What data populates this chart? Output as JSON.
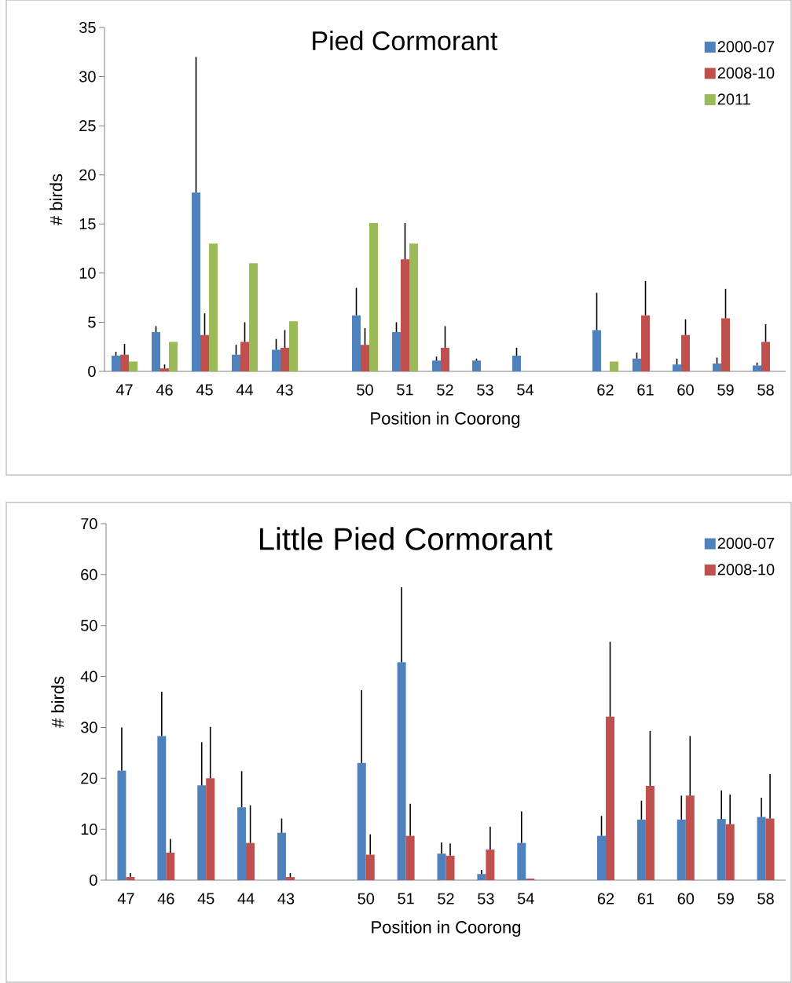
{
  "chart_data": [
    {
      "type": "bar",
      "title": "Pied Cormorant",
      "xlabel": "Position in Coorong",
      "ylabel": "# birds",
      "categories": [
        "47",
        "46",
        "45",
        "44",
        "43",
        null,
        "50",
        "51",
        "52",
        "53",
        "54",
        null,
        "62",
        "61",
        "60",
        "59",
        "58"
      ],
      "ylim": [
        0,
        35
      ],
      "yticks": [
        0,
        5,
        10,
        15,
        20,
        25,
        30,
        35
      ],
      "legend": "top right",
      "series": [
        {
          "name": "2000-07",
          "color": "#4f81bd",
          "values": [
            1.6,
            4.0,
            18.2,
            1.7,
            2.2,
            null,
            5.7,
            4.0,
            1.1,
            1.1,
            1.6,
            null,
            4.2,
            1.3,
            0.7,
            0.8,
            0.6
          ],
          "errors": [
            [
              1.6,
              2.0
            ],
            [
              4.0,
              4.6
            ],
            [
              18.2,
              32.0
            ],
            [
              1.7,
              2.7
            ],
            [
              2.2,
              3.3
            ],
            null,
            [
              5.7,
              8.5
            ],
            [
              4.0,
              5.0
            ],
            [
              1.1,
              1.5
            ],
            [
              1.1,
              1.3
            ],
            [
              1.6,
              2.4
            ],
            null,
            [
              4.2,
              8.0
            ],
            [
              1.3,
              1.9
            ],
            [
              0.7,
              1.3
            ],
            [
              0.8,
              1.4
            ],
            [
              0.6,
              0.9
            ]
          ]
        },
        {
          "name": "2008-10",
          "color": "#c0504d",
          "values": [
            1.7,
            0.3,
            3.7,
            3.0,
            2.4,
            null,
            2.7,
            11.4,
            2.4,
            null,
            null,
            null,
            null,
            5.7,
            3.7,
            5.4,
            3.0
          ],
          "errors": [
            [
              1.7,
              2.8
            ],
            [
              0.3,
              0.7
            ],
            [
              3.7,
              5.9
            ],
            [
              3.0,
              5.0
            ],
            [
              2.4,
              4.2
            ],
            null,
            [
              2.7,
              4.4
            ],
            [
              11.4,
              15.1
            ],
            [
              2.4,
              4.6
            ],
            null,
            null,
            null,
            null,
            [
              5.7,
              9.2
            ],
            [
              3.7,
              5.3
            ],
            [
              5.4,
              8.4
            ],
            [
              3.0,
              4.8
            ]
          ]
        },
        {
          "name": "2011",
          "color": "#9bbb59",
          "values": [
            1.0,
            3.0,
            13.0,
            11.0,
            5.1,
            null,
            15.1,
            13.0,
            null,
            null,
            null,
            null,
            1.0,
            null,
            null,
            null,
            null
          ]
        }
      ]
    },
    {
      "type": "bar",
      "title": "Little Pied Cormorant",
      "xlabel": "Position in Coorong",
      "ylabel": "# birds",
      "categories": [
        "47",
        "46",
        "45",
        "44",
        "43",
        null,
        "50",
        "51",
        "52",
        "53",
        "54",
        null,
        "62",
        "61",
        "60",
        "59",
        "58"
      ],
      "ylim": [
        0,
        70
      ],
      "yticks": [
        0,
        10,
        20,
        30,
        40,
        50,
        60,
        70
      ],
      "legend": "top right",
      "series": [
        {
          "name": "2000-07",
          "color": "#4f81bd",
          "values": [
            21.5,
            28.3,
            18.6,
            14.3,
            9.3,
            null,
            23.0,
            42.8,
            5.2,
            1.2,
            7.3,
            null,
            8.7,
            11.9,
            11.9,
            12.0,
            12.4
          ],
          "errors": [
            [
              21.5,
              30.0
            ],
            [
              28.3,
              37.0
            ],
            [
              18.6,
              27.1
            ],
            [
              14.3,
              21.4
            ],
            [
              9.3,
              12.1
            ],
            null,
            [
              23.0,
              37.3
            ],
            [
              42.8,
              57.5
            ],
            [
              5.2,
              7.4
            ],
            [
              1.2,
              2.0
            ],
            [
              7.3,
              13.5
            ],
            null,
            [
              8.7,
              12.6
            ],
            [
              11.9,
              15.6
            ],
            [
              11.9,
              16.6
            ],
            [
              12.0,
              17.6
            ],
            [
              12.4,
              16.2
            ]
          ]
        },
        {
          "name": "2008-10",
          "color": "#c0504d",
          "values": [
            0.6,
            5.4,
            20.0,
            7.3,
            0.6,
            null,
            5.0,
            8.7,
            4.8,
            6.0,
            0.3,
            null,
            32.1,
            18.5,
            16.6,
            11.0,
            12.1
          ],
          "errors": [
            [
              0.6,
              1.4
            ],
            [
              5.4,
              8.1
            ],
            [
              20.0,
              30.1
            ],
            [
              7.3,
              14.7
            ],
            [
              0.6,
              1.4
            ],
            null,
            [
              5.0,
              9.0
            ],
            [
              8.7,
              15.0
            ],
            [
              4.8,
              7.2
            ],
            [
              6.0,
              10.5
            ],
            null,
            null,
            [
              32.1,
              46.8
            ],
            [
              18.5,
              29.3
            ],
            [
              16.6,
              28.3
            ],
            [
              11.0,
              16.8
            ],
            [
              12.1,
              20.8
            ]
          ]
        }
      ]
    }
  ]
}
